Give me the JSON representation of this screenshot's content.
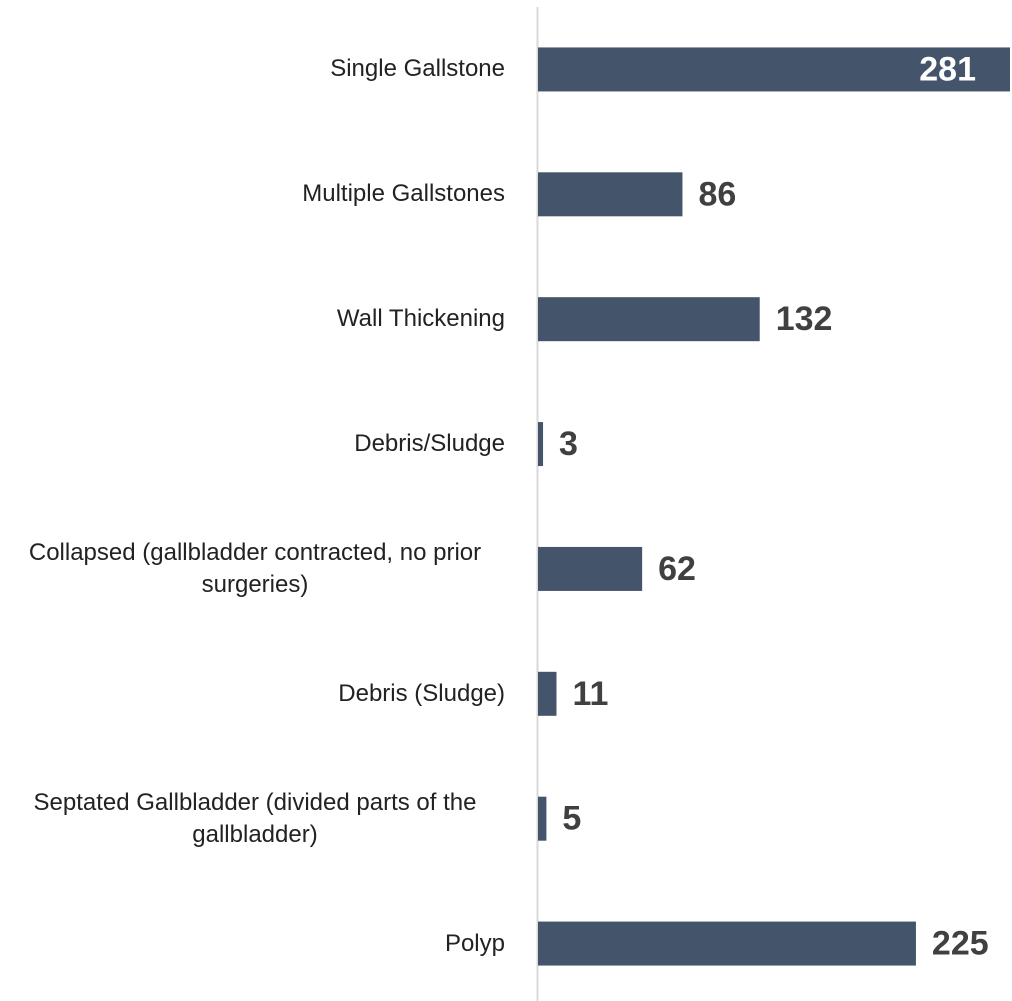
{
  "chart_data": {
    "type": "bar",
    "orientation": "horizontal",
    "categories": [
      "Single Gallstone",
      "Multiple Gallstones",
      "Wall Thickening",
      "Debris/Sludge",
      "Collapsed (gallbladder contracted, no prior surgeries)",
      "Debris (Sludge)",
      "Septated Gallbladder (divided parts of the gallbladder)",
      "Polyp"
    ],
    "values": [
      281,
      86,
      132,
      3,
      62,
      11,
      5,
      225
    ],
    "color": "#44546a",
    "xlim": [
      0,
      281
    ]
  }
}
